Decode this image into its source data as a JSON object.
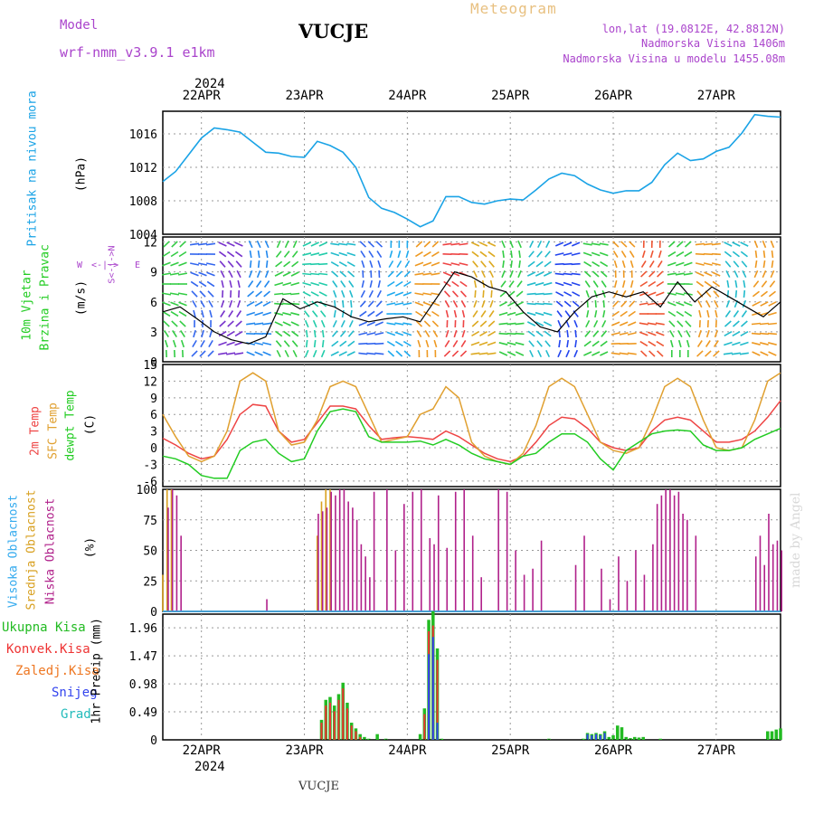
{
  "header": {
    "model_label": "Model",
    "model_name": "wrf-nmm_v3.9.1  e1km",
    "title": "VUCJE",
    "meteogram": "Meteogram",
    "lonlat": "lon,lat (19.0812E, 42.8812N)",
    "altitude": "Nadmorska Visina 1406m",
    "model_altitude": "Nadmorska Visina u modelu 1455.08m",
    "credit": "made by Angel",
    "footer_station": "VUCJE"
  },
  "colors": {
    "pressure": "#1aa3e6",
    "temp2m": "#ee4444",
    "sfc": "#e0a030",
    "dewpt": "#22cc22",
    "high_cloud": "#33aaee",
    "mid_cloud": "#d8a020",
    "low_cloud": "#b0208a",
    "total_rain": "#22bb22",
    "conv_rain": "#ee3333",
    "freezing": "#ee7722",
    "snow": "#3344ee",
    "hail": "#22bbbb",
    "purple": "#aa44cc"
  },
  "time_axis": {
    "year_top": "2024",
    "year_bottom": "2024",
    "days": [
      "22APR",
      "23APR",
      "24APR",
      "25APR",
      "26APR",
      "27APR"
    ]
  },
  "panels": {
    "pressure": {
      "label_main": "Pritisak na nivou mora",
      "unit": "(hPa)",
      "ticks": [
        "1004",
        "1008",
        "1012",
        "1016"
      ]
    },
    "wind": {
      "label_a": "10m Vjetar",
      "label_b": "Brzina i Pravac",
      "unit": "(m/s)",
      "ticks": [
        "0",
        "3",
        "6",
        "9",
        "12"
      ],
      "compass_w": "W",
      "compass_e": "E",
      "compass_arrow": "<-|->",
      "compass_ns": "S<-|->N"
    },
    "temp": {
      "label_2m": "2m Temp",
      "label_sfc": "SFC Temp",
      "label_dew": "dewpt Temp",
      "unit": "(C)",
      "ticks": [
        "-6",
        "-3",
        "0",
        "3",
        "6",
        "9",
        "12",
        "15"
      ]
    },
    "cloud": {
      "label_high": "Visoka Oblacnost",
      "label_mid": "Srednja Oblacnost",
      "label_low": "Niska Oblacnost",
      "unit": "(%)",
      "ticks": [
        "0",
        "25",
        "50",
        "75",
        "100"
      ]
    },
    "precip": {
      "legend": [
        "Ukupna Kisa",
        "Konvek.Kisa",
        "Zaledj.Kisa",
        "Snijeg",
        "Grad"
      ],
      "unit": "1hr Precip (mm)",
      "ticks": [
        "0",
        "0.49",
        "0.98",
        "1.47",
        "1.96"
      ]
    }
  },
  "chart_data": [
    {
      "type": "line",
      "title": "",
      "ylabel": "Pritisak na nivou mora (hPa)",
      "ylim": [
        1004,
        1018.7
      ],
      "x_hours": [
        0,
        3,
        6,
        9,
        12,
        15,
        18,
        21,
        24,
        27,
        30,
        33,
        36,
        39,
        42,
        45,
        48,
        51,
        54,
        57,
        60,
        63,
        66,
        69,
        72,
        75,
        78,
        81,
        84,
        87,
        90,
        93,
        96,
        99,
        102,
        105,
        108,
        111,
        114,
        117,
        120,
        123,
        126,
        129,
        132,
        135,
        138,
        141,
        144
      ],
      "series": [
        {
          "values": [
            1010.3,
            1011.5,
            1013.5,
            1015.5,
            1016.7,
            1016.5,
            1016.2,
            1015.0,
            1013.8,
            1013.7,
            1013.3,
            1013.2,
            1015.1,
            1014.6,
            1013.8,
            1012.0,
            1008.4,
            1007.1,
            1006.6,
            1005.8,
            1004.9,
            1005.6,
            1008.5,
            1008.5,
            1007.8,
            1007.6,
            1008.0,
            1008.2,
            1008.1,
            1009.3,
            1010.6,
            1011.3,
            1011.0,
            1010.0,
            1009.3,
            1008.9,
            1009.2,
            1009.2,
            1010.2,
            1012.3,
            1013.7,
            1012.8,
            1013.0,
            1013.9,
            1014.4,
            1016.1,
            1018.3,
            1018.1,
            1018.0
          ]
        }
      ]
    },
    {
      "type": "line",
      "title": "",
      "ylabel": "10m Vjetar Brzina i Pravac (m/s)",
      "ylim": [
        0,
        12.5
      ],
      "x_hours": [
        0,
        4,
        8,
        12,
        16,
        20,
        24,
        28,
        32,
        36,
        40,
        44,
        48,
        52,
        56,
        60,
        64,
        68,
        72,
        76,
        80,
        84,
        88,
        92,
        96,
        100,
        104,
        108,
        112,
        116,
        120,
        124,
        128,
        132,
        136,
        140,
        144
      ],
      "series": [
        {
          "values": [
            5.0,
            5.5,
            4.3,
            3.0,
            2.2,
            1.8,
            2.5,
            6.3,
            5.3,
            6.0,
            5.5,
            4.5,
            4.0,
            4.3,
            4.5,
            4.0,
            6.5,
            9.0,
            8.5,
            7.5,
            7.0,
            5.0,
            3.5,
            3.0,
            5.0,
            6.5,
            7.0,
            6.5,
            7.0,
            5.5,
            8.0,
            6.0,
            7.5,
            6.5,
            5.5,
            4.5,
            6.0
          ]
        }
      ]
    },
    {
      "type": "line",
      "title": "",
      "ylabel": "Temp (C)",
      "ylim": [
        -7,
        15
      ],
      "x_hours": [
        0,
        3,
        6,
        9,
        12,
        15,
        18,
        21,
        24,
        27,
        30,
        33,
        36,
        39,
        42,
        45,
        48,
        51,
        54,
        57,
        60,
        63,
        66,
        69,
        72,
        75,
        78,
        81,
        84,
        87,
        90,
        93,
        96,
        99,
        102,
        105,
        108,
        111,
        114,
        117,
        120,
        123,
        126,
        129,
        132,
        135,
        138,
        141,
        144
      ],
      "series": [
        {
          "name": "2m Temp",
          "values": [
            1.7,
            0.5,
            -1.0,
            -2.0,
            -1.5,
            1.5,
            6.0,
            7.8,
            7.5,
            3.0,
            1.0,
            1.5,
            4.5,
            7.5,
            7.5,
            7.0,
            4.0,
            1.5,
            1.8,
            2.0,
            1.8,
            1.5,
            3.0,
            2.0,
            0.5,
            -1.0,
            -2.0,
            -2.5,
            -1.5,
            1.0,
            4.0,
            5.5,
            5.2,
            3.5,
            1.0,
            0.0,
            -0.5,
            0.0,
            3.0,
            5.0,
            5.5,
            5.0,
            3.0,
            1.0,
            1.0,
            1.5,
            3.0,
            5.5,
            8.5
          ]
        },
        {
          "name": "SFC Temp",
          "values": [
            6.0,
            2.0,
            -1.5,
            -2.5,
            -1.5,
            3.0,
            12.0,
            13.5,
            12.0,
            3.0,
            0.5,
            1.0,
            5.0,
            11.0,
            12.0,
            11.0,
            6.0,
            1.0,
            1.5,
            2.0,
            6.0,
            7.0,
            11.0,
            9.0,
            1.0,
            -1.5,
            -2.5,
            -3.0,
            -1.0,
            4.0,
            11.0,
            12.5,
            11.0,
            6.0,
            1.0,
            -0.5,
            -1.0,
            0.0,
            5.0,
            11.0,
            12.5,
            11.0,
            5.0,
            0.0,
            -0.5,
            0.0,
            5.0,
            12.0,
            13.5
          ]
        },
        {
          "name": "dewpt Temp",
          "values": [
            -1.5,
            -2.0,
            -3.0,
            -5.0,
            -5.5,
            -5.5,
            -0.5,
            1.0,
            1.5,
            -1.0,
            -2.5,
            -2.0,
            3.0,
            6.5,
            7.0,
            6.5,
            2.0,
            1.0,
            1.0,
            1.0,
            1.2,
            0.5,
            1.5,
            0.5,
            -1.0,
            -2.0,
            -2.5,
            -3.0,
            -1.5,
            -1.0,
            1.0,
            2.5,
            2.5,
            1.0,
            -2.0,
            -4.0,
            -0.5,
            1.0,
            2.5,
            3.0,
            3.2,
            3.0,
            0.5,
            -0.5,
            -0.5,
            0.0,
            1.5,
            2.5,
            3.5
          ]
        }
      ]
    },
    {
      "type": "bar",
      "title": "",
      "ylabel": "Oblacnost (%)",
      "ylim": [
        0,
        100
      ],
      "x_hours": [
        0,
        1,
        2,
        3,
        4,
        5,
        6,
        24,
        30,
        36,
        37,
        38,
        39,
        40,
        41,
        42,
        43,
        44,
        45,
        46,
        47,
        48,
        49,
        50,
        52,
        54,
        56,
        58,
        60,
        62,
        63,
        64,
        66,
        68,
        70,
        72,
        74,
        78,
        80,
        82,
        84,
        86,
        88,
        96,
        98,
        102,
        104,
        106,
        108,
        110,
        112,
        114,
        115,
        116,
        117,
        118,
        119,
        120,
        121,
        122,
        124,
        126,
        128,
        130,
        134,
        136,
        138,
        139,
        140,
        141,
        142,
        143,
        144
      ],
      "series": [
        {
          "name": "Visoka Oblacnost",
          "values": [
            0,
            0,
            0,
            0,
            0,
            0,
            0,
            0,
            0,
            0,
            0,
            0,
            0,
            0,
            0,
            0,
            0,
            0,
            0,
            0,
            0,
            0,
            0,
            0,
            0,
            0,
            0,
            0,
            0,
            0,
            0,
            0,
            0,
            0,
            0,
            0,
            0,
            0,
            0,
            0,
            0,
            0,
            0,
            0,
            0,
            0,
            0,
            0,
            0,
            0,
            0,
            0,
            0,
            0,
            0,
            0,
            0,
            0,
            0,
            0,
            0,
            0,
            0,
            0,
            0,
            0,
            0,
            0,
            0,
            0,
            0,
            0,
            0
          ]
        },
        {
          "name": "Srednja Oblacnost",
          "values": [
            30,
            100,
            100,
            0,
            0,
            0,
            0,
            0,
            0,
            62,
            90,
            100,
            100,
            0,
            0,
            0,
            0,
            0,
            0,
            0,
            0,
            0,
            0,
            0,
            0,
            0,
            0,
            0,
            0,
            0,
            0,
            0,
            0,
            0,
            0,
            0,
            0,
            0,
            0,
            0,
            0,
            0,
            0,
            0,
            0,
            0,
            0,
            0,
            0,
            0,
            0,
            0,
            0,
            0,
            0,
            0,
            0,
            0,
            0,
            0,
            0,
            0,
            0,
            0,
            0,
            0,
            0,
            0,
            0,
            0,
            0,
            0,
            0
          ]
        },
        {
          "name": "Niska Oblacnost",
          "values": [
            0,
            85,
            100,
            95,
            62,
            0,
            0,
            10,
            0,
            80,
            82,
            85,
            98,
            95,
            100,
            100,
            90,
            85,
            75,
            55,
            45,
            28,
            98,
            0,
            100,
            50,
            88,
            98,
            100,
            60,
            55,
            95,
            52,
            98,
            100,
            62,
            28,
            100,
            98,
            50,
            30,
            35,
            58,
            38,
            62,
            35,
            10,
            45,
            25,
            50,
            30,
            55,
            88,
            95,
            100,
            100,
            95,
            98,
            80,
            75,
            62,
            0,
            0,
            0,
            0,
            0,
            45,
            62,
            38,
            80,
            55,
            58,
            50
          ]
        }
      ]
    },
    {
      "type": "bar",
      "title": "",
      "ylabel": "1hr Precip (mm)",
      "ylim": [
        0,
        2.2
      ],
      "x_hours": [
        37,
        38,
        39,
        40,
        41,
        42,
        43,
        44,
        45,
        46,
        47,
        48,
        50,
        52,
        60,
        61,
        62,
        63,
        64,
        65,
        90,
        98,
        99,
        100,
        101,
        102,
        103,
        104,
        105,
        106,
        107,
        108,
        109,
        110,
        111,
        112,
        116,
        141,
        142,
        143,
        144
      ],
      "series": [
        {
          "name": "Ukupna Kisa",
          "values": [
            0.35,
            0.7,
            0.75,
            0.6,
            0.8,
            1.0,
            0.65,
            0.3,
            0.2,
            0.1,
            0.05,
            0.02,
            0.1,
            0.02,
            0.1,
            0.55,
            2.1,
            2.25,
            1.6,
            0.02,
            0.02,
            0.02,
            0.12,
            0.1,
            0.12,
            0.1,
            0.15,
            0.05,
            0.08,
            0.25,
            0.22,
            0.05,
            0.03,
            0.05,
            0.04,
            0.05,
            0.02,
            0.15,
            0.15,
            0.18,
            0.2
          ]
        },
        {
          "name": "Konvek.Kisa",
          "values": [
            0.3,
            0.6,
            0.65,
            0.5,
            0.7,
            0.9,
            0.55,
            0.25,
            0.15,
            0.05,
            0.0,
            0.0,
            0.0,
            0.0,
            0.0,
            0.45,
            1.9,
            2.0,
            1.4,
            0.0,
            0.0,
            0.0,
            0.0,
            0.0,
            0.0,
            0.0,
            0.0,
            0.0,
            0.0,
            0.0,
            0.0,
            0.0,
            0.0,
            0.0,
            0.0,
            0.0,
            0.0,
            0.0,
            0.0,
            0.0,
            0.0
          ]
        },
        {
          "name": "Snijeg",
          "values": [
            0,
            0,
            0,
            0,
            0,
            0,
            0,
            0,
            0,
            0,
            0,
            0,
            0,
            0,
            0,
            0,
            1.5,
            1.8,
            0.3,
            0,
            0,
            0,
            0.1,
            0.08,
            0.1,
            0.08,
            0.12,
            0,
            0,
            0,
            0,
            0,
            0,
            0,
            0,
            0,
            0,
            0,
            0,
            0,
            0
          ]
        }
      ]
    }
  ]
}
